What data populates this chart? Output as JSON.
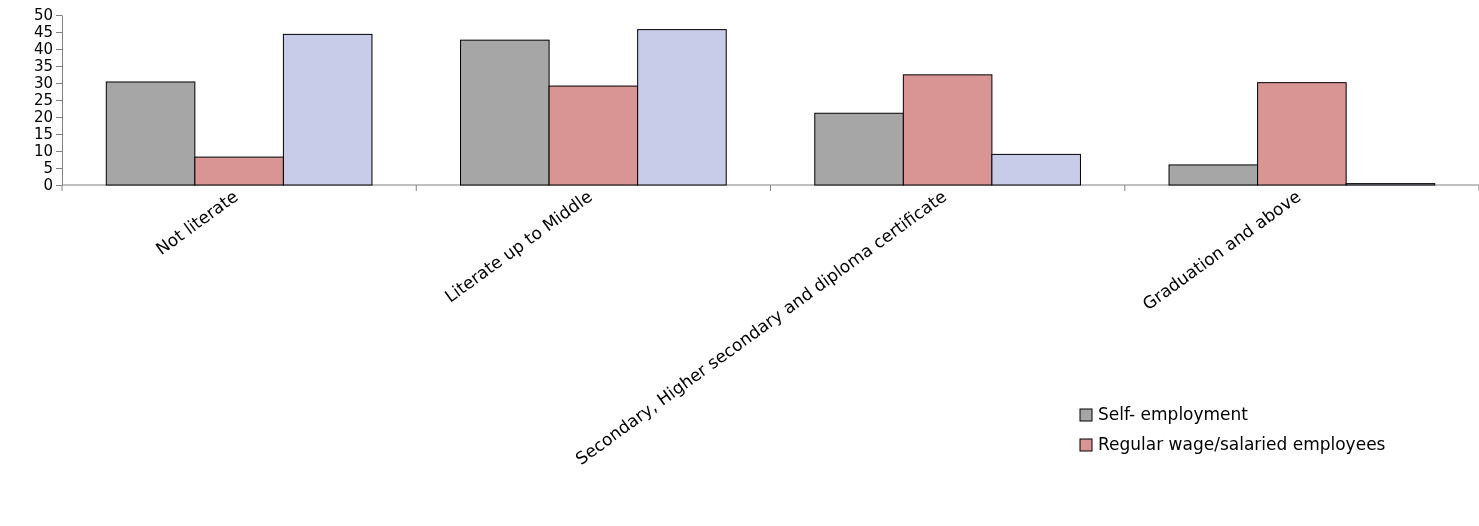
{
  "chart_data": {
    "type": "bar",
    "categories": [
      "Not literate",
      "Literate up to Middle",
      "Secondary, Higher secondary and diploma certificate",
      "Graduation and above"
    ],
    "series": [
      {
        "name": "Self- employment",
        "color": "#a6a6a6",
        "values": [
          30.3,
          42.6,
          21.1,
          5.9
        ]
      },
      {
        "name": "Regular wage/salaried employees",
        "color": "#d99594",
        "values": [
          8.2,
          29.1,
          32.4,
          30.1
        ]
      },
      {
        "color": "#c8cce8",
        "values": [
          44.3,
          45.7,
          9.0,
          0.4
        ]
      }
    ],
    "ylim": [
      0,
      50
    ],
    "yticks": [
      0,
      5,
      10,
      15,
      20,
      25,
      30,
      35,
      40,
      45,
      50
    ],
    "grid": false,
    "legend": "bottom right"
  }
}
